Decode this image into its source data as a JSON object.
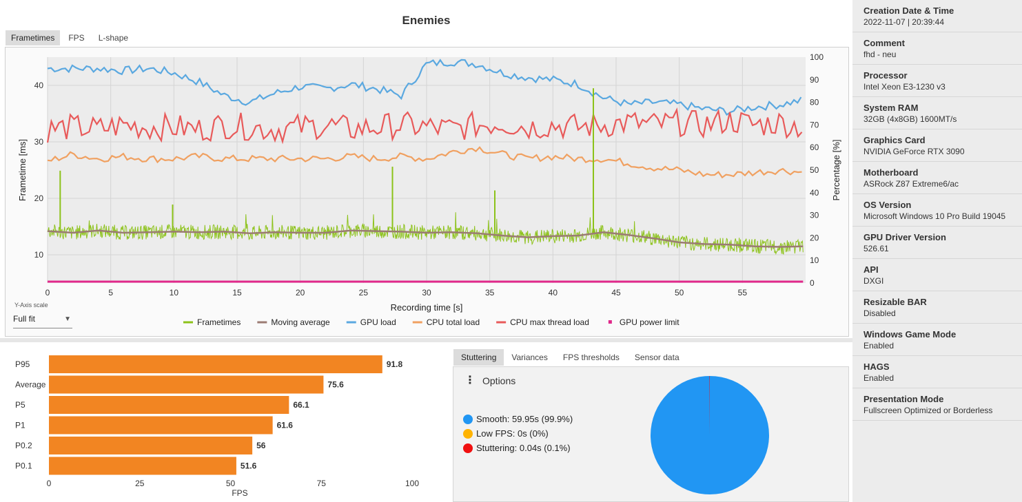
{
  "title": "Enemies",
  "top_tabs": [
    {
      "label": "Frametimes",
      "active": true
    },
    {
      "label": "FPS",
      "active": false
    },
    {
      "label": "L-shape",
      "active": false
    }
  ],
  "y_axis_scale": {
    "label": "Y-Axis scale",
    "value": "Full fit"
  },
  "bottom_tabs": [
    {
      "label": "Stuttering",
      "active": true
    },
    {
      "label": "Variances",
      "active": false
    },
    {
      "label": "FPS thresholds",
      "active": false
    },
    {
      "label": "Sensor data",
      "active": false
    }
  ],
  "stutter_panel": {
    "options_label": "Options",
    "legend": [
      {
        "text": "Smooth:  59.95s (99.9%)",
        "color": "#2196f3"
      },
      {
        "text": "Low FPS:  0s (0%)",
        "color": "#ffb300"
      },
      {
        "text": "Stuttering:  0.04s (0.1%)",
        "color": "#f01010"
      }
    ]
  },
  "chart_data": [
    {
      "type": "line",
      "xlabel": "Recording time [s]",
      "ylabel": "Frametime [ms]",
      "ylabel_right": "Percentage [%]",
      "xlim": [
        0,
        60
      ],
      "ylim": [
        5,
        45
      ],
      "ylim_right": [
        0,
        100
      ],
      "x_ticks": [
        0,
        5,
        10,
        15,
        20,
        25,
        30,
        35,
        40,
        45,
        50,
        55
      ],
      "y_ticks": [
        10,
        20,
        30,
        40
      ],
      "y_ticks_right": [
        0,
        10,
        20,
        30,
        40,
        50,
        60,
        70,
        80,
        90,
        100
      ],
      "grid": true,
      "legend_position": "bottom",
      "series": [
        {
          "name": "Frametimes",
          "color": "#8cc219",
          "axis": "left",
          "x": [
            0,
            2,
            4,
            6,
            8,
            10,
            12,
            14,
            16,
            18,
            20,
            22,
            24,
            26,
            28,
            30,
            32,
            34,
            36,
            38,
            40,
            42,
            44,
            46,
            48,
            50,
            52,
            54,
            56,
            58,
            59.8
          ],
          "y": [
            14.2,
            13.9,
            14.3,
            13.9,
            14.0,
            14.1,
            14.0,
            14.1,
            13.8,
            14.0,
            13.9,
            13.9,
            14.3,
            14.2,
            14.1,
            13.9,
            14.0,
            13.8,
            13.4,
            13.1,
            13.3,
            13.4,
            14.0,
            13.5,
            12.9,
            12.2,
            11.9,
            11.8,
            11.5,
            11.4,
            11.5
          ],
          "spikes": [
            {
              "x": 1,
              "y": 24.9
            },
            {
              "x": 9.9,
              "y": 18.9
            },
            {
              "x": 27.3,
              "y": 25.6
            },
            {
              "x": 35.4,
              "y": 21.4
            },
            {
              "x": 43.2,
              "y": 39.5
            }
          ]
        },
        {
          "name": "Moving average",
          "color": "#9b7b73",
          "axis": "left",
          "x": [
            0,
            2,
            4,
            6,
            8,
            10,
            12,
            14,
            16,
            18,
            20,
            22,
            24,
            26,
            28,
            30,
            32,
            34,
            36,
            38,
            40,
            42,
            44,
            46,
            48,
            50,
            52,
            54,
            56,
            58,
            59.8
          ],
          "y": [
            14.2,
            13.9,
            14.3,
            13.9,
            14.0,
            14.1,
            14.0,
            14.1,
            13.8,
            14.0,
            13.9,
            13.9,
            14.3,
            14.2,
            14.1,
            13.9,
            14.0,
            13.8,
            13.4,
            13.1,
            13.3,
            13.4,
            14.0,
            13.5,
            12.9,
            12.2,
            11.9,
            11.8,
            11.5,
            11.4,
            11.5
          ]
        },
        {
          "name": "GPU load",
          "color": "#5aa8e0",
          "axis": "right",
          "x": [
            0,
            2,
            4,
            6,
            8,
            10,
            12,
            14,
            16,
            18,
            20,
            22,
            24,
            26,
            28,
            30,
            32,
            34,
            36,
            38,
            40,
            42,
            44,
            46,
            48,
            50,
            52,
            54,
            56,
            58,
            59.8
          ],
          "y": [
            95,
            95,
            95,
            94,
            95,
            93,
            89,
            83,
            80,
            84,
            87,
            86,
            88,
            86,
            83,
            97,
            98,
            97,
            93,
            91,
            90,
            88,
            82,
            79,
            80,
            79,
            77,
            76,
            78,
            79,
            81
          ]
        },
        {
          "name": "CPU total load",
          "color": "#f0a060",
          "axis": "right",
          "x": [
            0,
            2,
            4,
            6,
            8,
            10,
            12,
            14,
            16,
            18,
            20,
            22,
            24,
            26,
            28,
            30,
            32,
            34,
            36,
            38,
            40,
            42,
            44,
            46,
            48,
            50,
            52,
            54,
            56,
            58,
            59.8
          ],
          "y": [
            54,
            57,
            55,
            56,
            55,
            55,
            56,
            55,
            55,
            55,
            55,
            55,
            56,
            55,
            56,
            55,
            58,
            60,
            57,
            55,
            56,
            55,
            55,
            53,
            51,
            50,
            48,
            48,
            49,
            50,
            49
          ]
        },
        {
          "name": "CPU max thread load",
          "color": "#e85a5a",
          "axis": "right",
          "x": [
            0,
            2,
            4,
            6,
            8,
            10,
            12,
            14,
            16,
            18,
            20,
            22,
            24,
            26,
            28,
            30,
            32,
            34,
            36,
            38,
            40,
            42,
            44,
            46,
            48,
            50,
            52,
            54,
            56,
            58,
            59.8
          ],
          "y": [
            68,
            69,
            68,
            70,
            69,
            69,
            68,
            70,
            69,
            68,
            69,
            70,
            68,
            69,
            70,
            69,
            68,
            70,
            71,
            69,
            70,
            69,
            70,
            71,
            70,
            71,
            70,
            72,
            70,
            71,
            69
          ]
        },
        {
          "name": "GPU power limit",
          "color": "#e0288a",
          "axis": "right",
          "x": [
            0,
            59.8
          ],
          "y": [
            0,
            0
          ]
        }
      ]
    },
    {
      "type": "bar",
      "orientation": "horizontal",
      "categories": [
        "P95",
        "Average",
        "P5",
        "P1",
        "P0.2",
        "P0.1"
      ],
      "values": [
        91.8,
        75.6,
        66.1,
        61.6,
        56,
        51.6
      ],
      "data_labels": [
        "91.8",
        "75.6",
        "66.1",
        "61.6",
        "56",
        "51.6"
      ],
      "xlabel": "FPS",
      "xlim": [
        0,
        100
      ],
      "x_ticks": [
        0,
        25,
        50,
        75,
        100
      ],
      "color": "#f28522"
    },
    {
      "type": "pie",
      "labels": [
        "Smooth",
        "Low FPS",
        "Stuttering"
      ],
      "values": [
        99.9,
        0,
        0.1
      ],
      "colors": [
        "#2196f3",
        "#ffb300",
        "#f01010"
      ]
    }
  ],
  "sidebar": [
    {
      "label": "Creation Date & Time",
      "value": "2022-11-07  |  20:39:44"
    },
    {
      "label": "Comment",
      "value": "fhd - neu"
    },
    {
      "label": "Processor",
      "value": "Intel Xeon E3-1230 v3"
    },
    {
      "label": "System RAM",
      "value": "32GB (4x8GB) 1600MT/s"
    },
    {
      "label": "Graphics Card",
      "value": "NVIDIA GeForce RTX 3090"
    },
    {
      "label": "Motherboard",
      "value": "ASRock Z87 Extreme6/ac"
    },
    {
      "label": "OS Version",
      "value": "Microsoft Windows 10 Pro Build 19045"
    },
    {
      "label": "GPU Driver Version",
      "value": "526.61"
    },
    {
      "label": "API",
      "value": "DXGI"
    },
    {
      "label": "Resizable BAR",
      "value": "Disabled"
    },
    {
      "label": "Windows Game Mode",
      "value": "Enabled"
    },
    {
      "label": "HAGS",
      "value": "Enabled"
    },
    {
      "label": "Presentation Mode",
      "value": "Fullscreen Optimized or Borderless"
    }
  ]
}
